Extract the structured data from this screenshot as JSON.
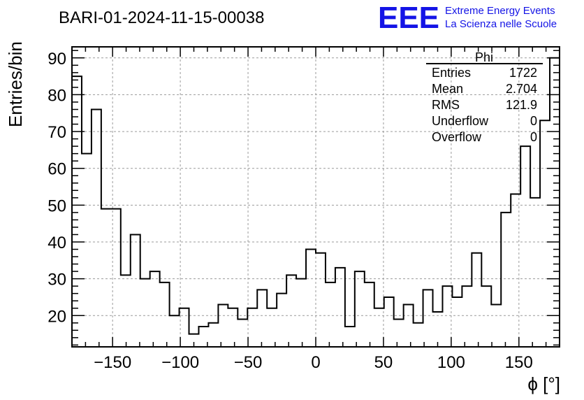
{
  "header": {
    "run_title": "BARI-01-2024-11-15-00038",
    "logo_text": "EEE",
    "org_line1": "Extreme Energy Events",
    "org_line2": "La Scienza nelle Scuole",
    "brand_color": "#1414e6"
  },
  "stats_box": {
    "title": "Phi",
    "rows": [
      {
        "label": "Entries",
        "value": "1722"
      },
      {
        "label": "Mean",
        "value": "2.704"
      },
      {
        "label": "RMS",
        "value": "121.9"
      },
      {
        "label": "Underflow",
        "value": "0"
      },
      {
        "label": "Overflow",
        "value": "0"
      }
    ]
  },
  "chart_data": {
    "type": "bar",
    "histogram_style": "step",
    "title": "BARI-01-2024-11-15-00038",
    "xlabel": "ϕ [°]",
    "ylabel": "Entries/bin",
    "xlim": [
      -180,
      180
    ],
    "ylim": [
      11.5,
      93
    ],
    "bin_width": 7.2,
    "x_ticks": [
      -150,
      -100,
      -50,
      0,
      50,
      100,
      150
    ],
    "x_tick_labels": [
      "−150",
      "−100",
      "−50",
      "0",
      "50",
      "100",
      "150"
    ],
    "y_ticks": [
      20,
      30,
      40,
      50,
      60,
      70,
      80,
      90
    ],
    "y_tick_labels": [
      "20",
      "30",
      "40",
      "50",
      "60",
      "70",
      "80",
      "90"
    ],
    "grid": true,
    "line_color": "#000000",
    "values": [
      85,
      64,
      76,
      49,
      49,
      31,
      42,
      30,
      32,
      29,
      20,
      22,
      15,
      17,
      18,
      23,
      22,
      19,
      22,
      27,
      22,
      26,
      31,
      30,
      38,
      37,
      29,
      33,
      17,
      32,
      29,
      22,
      25,
      19,
      23,
      18,
      27,
      21,
      28,
      25,
      28,
      37,
      28,
      23,
      48,
      53,
      66,
      52,
      73,
      90
    ]
  }
}
